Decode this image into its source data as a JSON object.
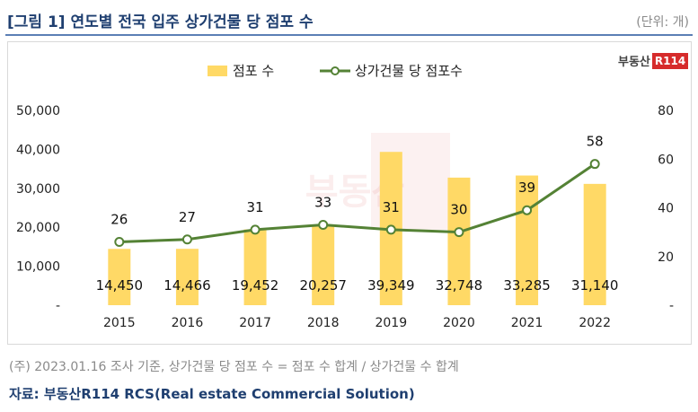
{
  "header": {
    "title": "[그림 1] 연도별 전국 입주 상가건물 당 점포 수",
    "unit": "(단위: 개)"
  },
  "logo": {
    "text": "부동산",
    "badge": "R114"
  },
  "watermark": {
    "text": "부동산",
    "badge": "R114"
  },
  "footer": {
    "note": "(주) 2023.01.16 조사 기준, 상가건물 당 점포 수 = 점포 수 합계 / 상가건물 수 합계",
    "source": "자료: 부동산R114 RCS(Real estate Commercial Solution)"
  },
  "chart_data": {
    "type": "bar",
    "categories": [
      "2015",
      "2016",
      "2017",
      "2018",
      "2019",
      "2020",
      "2021",
      "2022"
    ],
    "series": [
      {
        "name": "점포 수",
        "type": "bar",
        "axis": "left",
        "color": "#ffd966",
        "values": [
          14450,
          14466,
          19452,
          20257,
          39349,
          32748,
          33285,
          31140
        ],
        "labels": [
          "14,450",
          "14,466",
          "19,452",
          "20,257",
          "39,349",
          "32,748",
          "33,285",
          "31,140"
        ]
      },
      {
        "name": "상가건물 당 점포수",
        "type": "line",
        "axis": "right",
        "color": "#548235",
        "values": [
          26,
          27,
          31,
          33,
          31,
          30,
          39,
          58
        ],
        "labels": [
          "26",
          "27",
          "31",
          "33",
          "31",
          "30",
          "39",
          "58"
        ]
      }
    ],
    "y_left": {
      "ylim": [
        0,
        50000
      ],
      "ticks": [
        "-",
        "10,000",
        "20,000",
        "30,000",
        "40,000",
        "50,000"
      ]
    },
    "y_right": {
      "ylim": [
        0,
        80
      ],
      "ticks": [
        "-",
        "20",
        "40",
        "60",
        "80"
      ]
    },
    "legend_position": "top-center",
    "grid": false
  }
}
